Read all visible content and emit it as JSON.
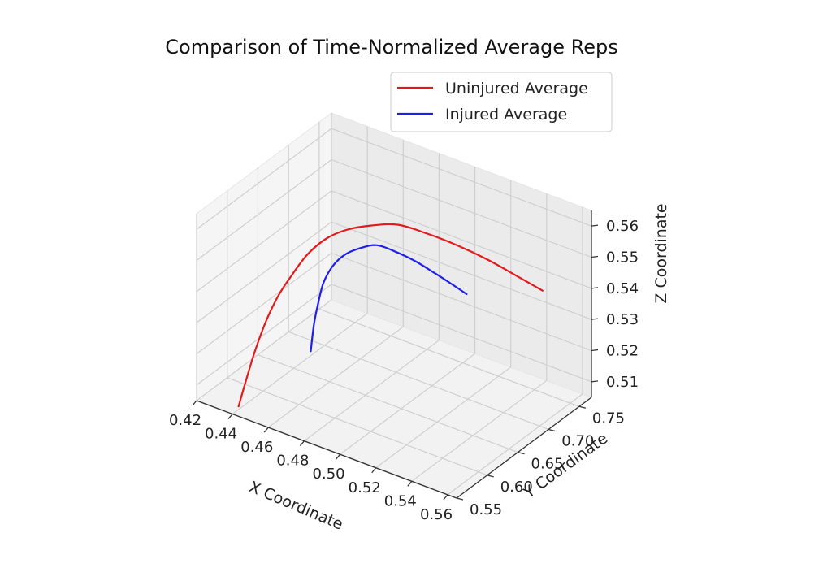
{
  "chart_data": {
    "type": "line",
    "projection": "3d",
    "title": "Comparison of Time-Normalized Average Reps",
    "xlabel": "X Coordinate",
    "ylabel": "Y Coordinate",
    "zlabel": "Z Coordinate",
    "x_ticks": [
      "0.42",
      "0.44",
      "0.46",
      "0.48",
      "0.50",
      "0.52",
      "0.54",
      "0.56"
    ],
    "y_ticks": [
      "0.55",
      "0.60",
      "0.65",
      "0.70",
      "0.75"
    ],
    "z_ticks": [
      "0.51",
      "0.52",
      "0.53",
      "0.54",
      "0.55",
      "0.56"
    ],
    "xlim": [
      0.42,
      0.565
    ],
    "ylim": [
      0.55,
      0.77
    ],
    "zlim": [
      0.505,
      0.565
    ],
    "grid": true,
    "legend_position": "top-right",
    "series": [
      {
        "name": "Uninjured Average",
        "color": "#e31a1c",
        "points": [
          {
            "x": 0.44,
            "y": 0.56,
            "z": 0.506
          },
          {
            "x": 0.44,
            "y": 0.573,
            "z": 0.513
          },
          {
            "x": 0.441,
            "y": 0.585,
            "z": 0.521
          },
          {
            "x": 0.443,
            "y": 0.597,
            "z": 0.529
          },
          {
            "x": 0.446,
            "y": 0.608,
            "z": 0.536
          },
          {
            "x": 0.45,
            "y": 0.619,
            "z": 0.542
          },
          {
            "x": 0.455,
            "y": 0.629,
            "z": 0.548
          },
          {
            "x": 0.462,
            "y": 0.64,
            "z": 0.553
          },
          {
            "x": 0.47,
            "y": 0.65,
            "z": 0.556
          },
          {
            "x": 0.48,
            "y": 0.66,
            "z": 0.558
          },
          {
            "x": 0.491,
            "y": 0.671,
            "z": 0.559
          },
          {
            "x": 0.503,
            "y": 0.683,
            "z": 0.557
          },
          {
            "x": 0.515,
            "y": 0.696,
            "z": 0.554
          },
          {
            "x": 0.527,
            "y": 0.71,
            "z": 0.55
          },
          {
            "x": 0.538,
            "y": 0.725,
            "z": 0.545
          },
          {
            "x": 0.548,
            "y": 0.74,
            "z": 0.54
          }
        ]
      },
      {
        "name": "Injured Average",
        "color": "#1f1fe8",
        "points": [
          {
            "x": 0.458,
            "y": 0.625,
            "z": 0.518
          },
          {
            "x": 0.457,
            "y": 0.633,
            "z": 0.525
          },
          {
            "x": 0.457,
            "y": 0.64,
            "z": 0.531
          },
          {
            "x": 0.458,
            "y": 0.646,
            "z": 0.537
          },
          {
            "x": 0.461,
            "y": 0.652,
            "z": 0.542
          },
          {
            "x": 0.466,
            "y": 0.657,
            "z": 0.546
          },
          {
            "x": 0.473,
            "y": 0.661,
            "z": 0.549
          },
          {
            "x": 0.481,
            "y": 0.666,
            "z": 0.551
          },
          {
            "x": 0.49,
            "y": 0.671,
            "z": 0.55
          },
          {
            "x": 0.499,
            "y": 0.677,
            "z": 0.548
          },
          {
            "x": 0.507,
            "y": 0.684,
            "z": 0.545
          },
          {
            "x": 0.514,
            "y": 0.691,
            "z": 0.542
          },
          {
            "x": 0.52,
            "y": 0.698,
            "z": 0.539
          }
        ]
      }
    ]
  }
}
